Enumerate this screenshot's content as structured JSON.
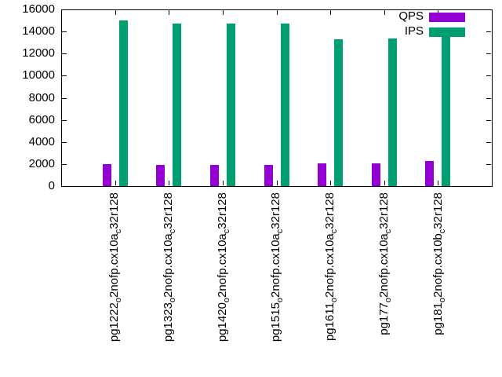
{
  "chart_data": {
    "type": "bar",
    "title": "",
    "xlabel": "",
    "ylabel": "",
    "ylim": [
      0,
      16000
    ],
    "yticks": [
      0,
      2000,
      4000,
      6000,
      8000,
      10000,
      12000,
      14000,
      16000
    ],
    "grid": false,
    "legend": {
      "position": "top-right-inside",
      "entries": [
        "QPS",
        "IPS"
      ]
    },
    "categories": [
      {
        "text": "pg1222o2nofp.cx10ac32r128",
        "segments": [
          [
            "pg1222",
            0
          ],
          [
            "o",
            1
          ],
          [
            "2nofp.cx10a",
            0
          ],
          [
            "c",
            1
          ],
          [
            "32r128",
            0
          ]
        ]
      },
      {
        "text": "pg1323o2nofp.cx10ac32r128",
        "segments": [
          [
            "pg1323",
            0
          ],
          [
            "o",
            1
          ],
          [
            "2nofp.cx10a",
            0
          ],
          [
            "c",
            1
          ],
          [
            "32r128",
            0
          ]
        ]
      },
      {
        "text": "pg1420o2nofp.cx10ac32r128",
        "segments": [
          [
            "pg1420",
            0
          ],
          [
            "o",
            1
          ],
          [
            "2nofp.cx10a",
            0
          ],
          [
            "c",
            1
          ],
          [
            "32r128",
            0
          ]
        ]
      },
      {
        "text": "pg1515o2nofp.cx10ac32r128",
        "segments": [
          [
            "pg1515",
            0
          ],
          [
            "o",
            1
          ],
          [
            "2nofp.cx10a",
            0
          ],
          [
            "c",
            1
          ],
          [
            "32r128",
            0
          ]
        ]
      },
      {
        "text": "pg1611o2nofp.cx10ac32r128",
        "segments": [
          [
            "pg1611",
            0
          ],
          [
            "o",
            1
          ],
          [
            "2nofp.cx10a",
            0
          ],
          [
            "c",
            1
          ],
          [
            "32r128",
            0
          ]
        ]
      },
      {
        "text": "pg177o2nofp.cx10ac32r128",
        "segments": [
          [
            "pg177",
            0
          ],
          [
            "o",
            1
          ],
          [
            "2nofp.cx10a",
            0
          ],
          [
            "c",
            1
          ],
          [
            "32r128",
            0
          ]
        ]
      },
      {
        "text": "pg181o2nofp.cx10bc32r128",
        "segments": [
          [
            "pg181",
            0
          ],
          [
            "o",
            1
          ],
          [
            "2nofp.cx10b",
            0
          ],
          [
            "c",
            1
          ],
          [
            "32r128",
            0
          ]
        ]
      }
    ],
    "series": [
      {
        "name": "QPS",
        "color": "#9400d3",
        "values": [
          2000,
          1900,
          1900,
          1900,
          2050,
          2050,
          2250
        ]
      },
      {
        "name": "IPS",
        "color": "#009e73",
        "values": [
          15000,
          14700,
          14700,
          14700,
          13300,
          13400,
          14100
        ]
      }
    ],
    "colors": {
      "axis": "#000000",
      "background": "#ffffff"
    }
  }
}
